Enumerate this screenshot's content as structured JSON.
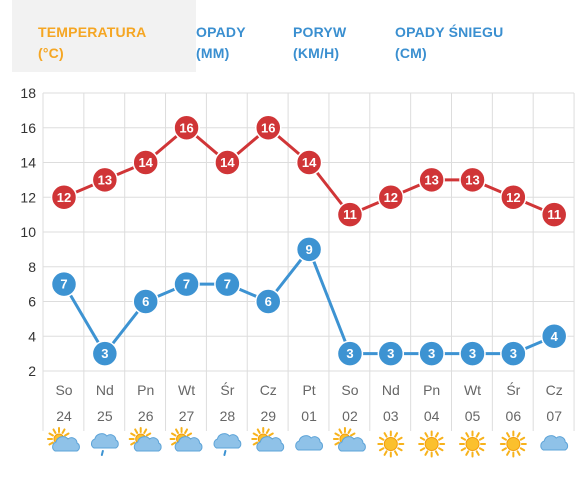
{
  "tabs": [
    {
      "line1": "TEMPERATURA",
      "line2": "(°C)",
      "active": true
    },
    {
      "line1": "OPADY",
      "line2": "(MM)",
      "active": false
    },
    {
      "line1": "PORYW",
      "line2": "(KM/H)",
      "active": false
    },
    {
      "line1": "OPADY ŚNIEGU",
      "line2": "(CM)",
      "active": false
    }
  ],
  "colors": {
    "active_tab": "#f5a623",
    "tab_text": "#3a8fd0",
    "high_series": "#d03537",
    "low_series": "#3d93d2",
    "grid": "#dddddd"
  },
  "chart_data": {
    "type": "line",
    "days": [
      "So",
      "Nd",
      "Pn",
      "Wt",
      "Śr",
      "Cz",
      "Pt",
      "So",
      "Nd",
      "Pn",
      "Wt",
      "Śr",
      "Cz"
    ],
    "dates": [
      "24",
      "25",
      "26",
      "27",
      "28",
      "29",
      "01",
      "02",
      "03",
      "04",
      "05",
      "06",
      "07"
    ],
    "icons": [
      "sun-cloud-icon",
      "rain-cloud-icon",
      "sun-cloud-icon",
      "sun-cloud-icon",
      "rain-cloud-icon",
      "sun-cloud-icon",
      "cloud-icon",
      "sun-cloud-icon",
      "sun-icon",
      "sun-icon",
      "sun-icon",
      "sun-icon",
      "cloud-icon"
    ],
    "series": [
      {
        "values": [
          12,
          13,
          14,
          16,
          14,
          16,
          14,
          11,
          12,
          13,
          13,
          12,
          11
        ],
        "color": "#d03537"
      },
      {
        "values": [
          7,
          3,
          6,
          7,
          7,
          6,
          9,
          3,
          3,
          3,
          3,
          3,
          4
        ],
        "color": "#3d93d2"
      }
    ],
    "yticks": [
      2,
      4,
      6,
      8,
      10,
      12,
      14,
      16,
      18
    ],
    "ylim": [
      2,
      18
    ],
    "grid": true
  }
}
